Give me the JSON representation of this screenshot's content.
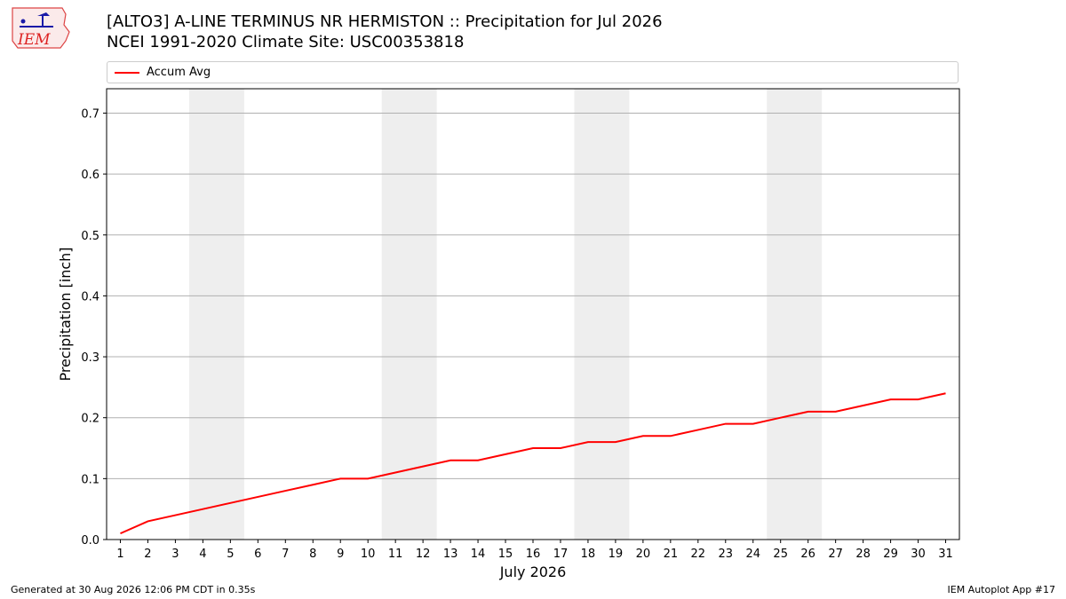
{
  "header": {
    "title_line1": "[ALTO3] A-LINE TERMINUS NR HERMISTON :: Precipitation for Jul 2026",
    "title_line2": "NCEI 1991-2020 Climate Site: USC00353818"
  },
  "logo": {
    "text": "IEM"
  },
  "footer": {
    "left": "Generated at 30 Aug 2026 12:06 PM CDT in 0.35s",
    "right": "IEM Autoplot App #17"
  },
  "chart_data": {
    "type": "line",
    "title": "[ALTO3] A-LINE TERMINUS NR HERMISTON :: Precipitation for Jul 2026",
    "subtitle": "NCEI 1991-2020 Climate Site: USC00353818",
    "xlabel": "July 2026",
    "ylabel": "Precipitation [inch]",
    "ylim": [
      0,
      0.74
    ],
    "yticks": [
      "0.0",
      "0.1",
      "0.2",
      "0.3",
      "0.4",
      "0.5",
      "0.6",
      "0.7"
    ],
    "ytick_values": [
      0,
      0.1,
      0.2,
      0.3,
      0.4,
      0.5,
      0.6,
      0.7
    ],
    "xlim": [
      0.5,
      31.5
    ],
    "x": [
      1,
      2,
      3,
      4,
      5,
      6,
      7,
      8,
      9,
      10,
      11,
      12,
      13,
      14,
      15,
      16,
      17,
      18,
      19,
      20,
      21,
      22,
      23,
      24,
      25,
      26,
      27,
      28,
      29,
      30,
      31
    ],
    "grid": "horizontal",
    "legend_position": "top",
    "weekend_bands": [
      [
        3.5,
        5.5
      ],
      [
        10.5,
        12.5
      ],
      [
        17.5,
        19.5
      ],
      [
        24.5,
        26.5
      ]
    ],
    "series": [
      {
        "name": "Accum Avg",
        "color": "#ff0000",
        "values": [
          0.01,
          0.03,
          0.04,
          0.05,
          0.06,
          0.07,
          0.08,
          0.09,
          0.1,
          0.1,
          0.11,
          0.12,
          0.13,
          0.13,
          0.14,
          0.15,
          0.15,
          0.16,
          0.16,
          0.17,
          0.17,
          0.18,
          0.19,
          0.19,
          0.2,
          0.21,
          0.21,
          0.22,
          0.23,
          0.23,
          0.24
        ]
      }
    ]
  }
}
